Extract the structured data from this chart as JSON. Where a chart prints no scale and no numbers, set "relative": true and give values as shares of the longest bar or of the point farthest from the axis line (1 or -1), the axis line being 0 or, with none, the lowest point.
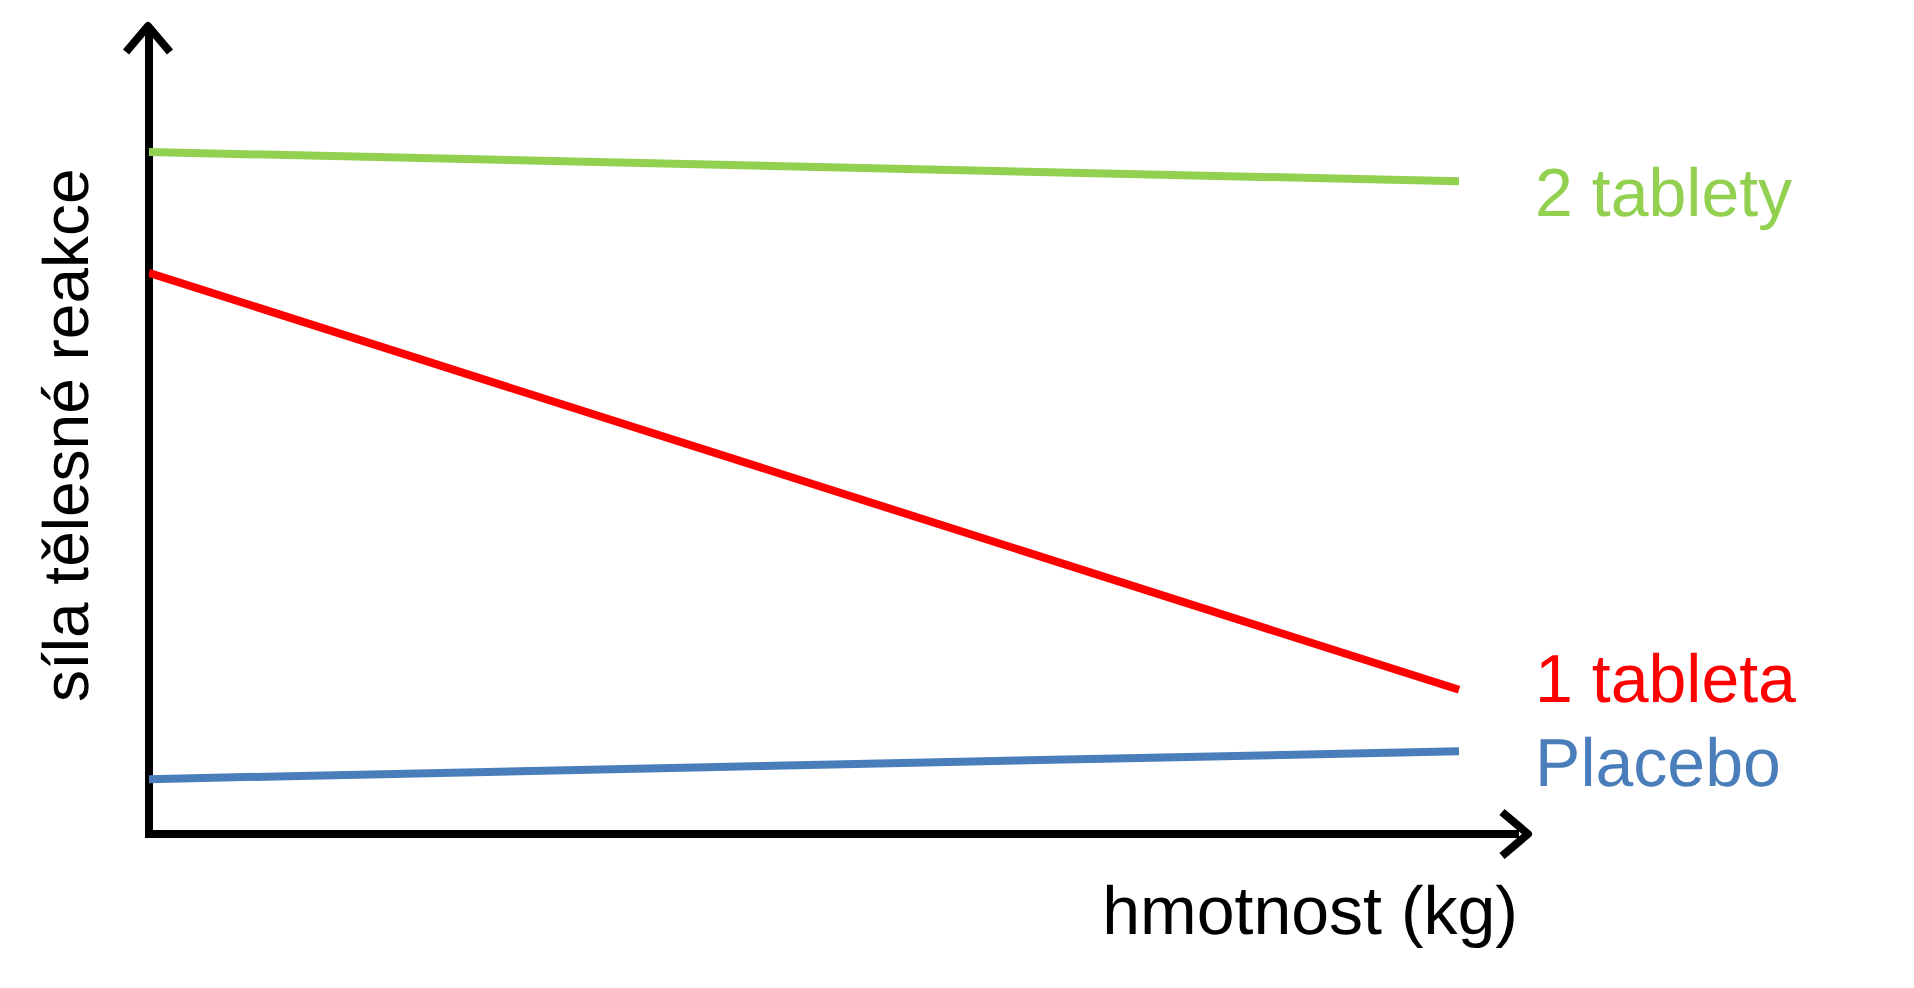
{
  "chart_data": {
    "type": "line",
    "relative": true,
    "xlabel": "hmotnost (kg)",
    "ylabel": "síla tělesné reakce",
    "categories": [
      null,
      null
    ],
    "legend": false,
    "grid": false,
    "marker": "none",
    "line_style": "solid",
    "series": [
      {
        "name": "2 tablety",
        "color": "#92d050",
        "values": [
          1,
          0.957
        ]
      },
      {
        "name": "1 tableta",
        "color": "#ff0000",
        "values": [
          0.823,
          0.212
        ]
      },
      {
        "name": "Placebo",
        "color": "#4a7ebb",
        "values": [
          0.081,
          0.122
        ]
      }
    ]
  }
}
